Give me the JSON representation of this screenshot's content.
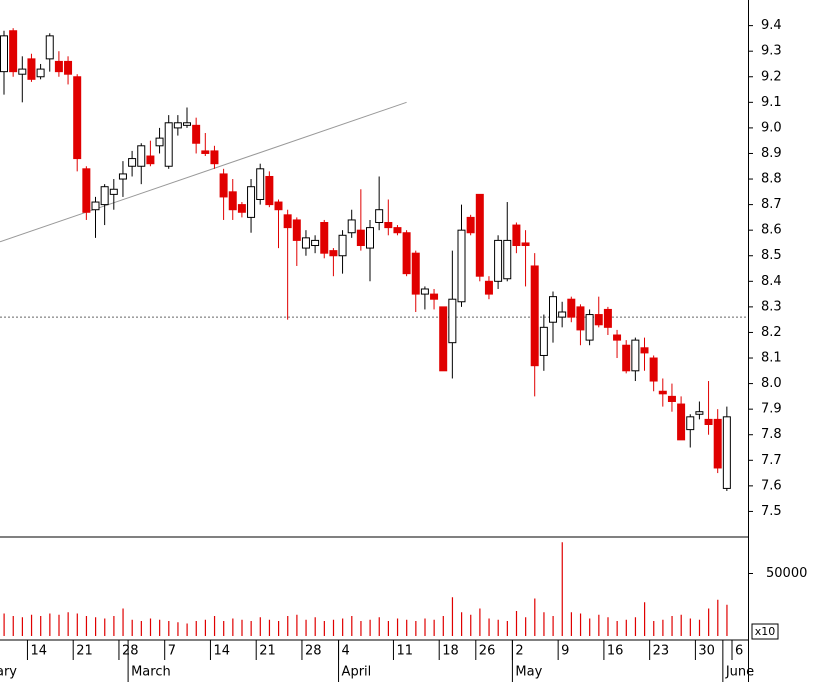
{
  "chart_data": {
    "type": "candlestick",
    "categories": [
      null,
      null,
      null,
      "14",
      null,
      null,
      null,
      null,
      "21",
      null,
      null,
      null,
      null,
      "28",
      null,
      null,
      null,
      null,
      "7",
      null,
      null,
      null,
      null,
      "14",
      null,
      null,
      null,
      null,
      "21",
      null,
      null,
      null,
      null,
      "28",
      null,
      null,
      null,
      "4",
      null,
      null,
      null,
      null,
      null,
      "11",
      null,
      null,
      null,
      null,
      "18",
      null,
      null,
      null,
      "26",
      null,
      null,
      null,
      "2",
      null,
      null,
      null,
      null,
      "9",
      null,
      null,
      null,
      null,
      "16",
      null,
      null,
      null,
      null,
      "23",
      null,
      null,
      null,
      null,
      "30",
      null,
      null,
      null,
      "6"
    ],
    "months": [
      "ary",
      null,
      null,
      null,
      null,
      null,
      null,
      null,
      null,
      null,
      null,
      null,
      null,
      null,
      "March",
      null,
      null,
      null,
      null,
      null,
      null,
      null,
      null,
      null,
      null,
      null,
      null,
      null,
      null,
      null,
      null,
      null,
      null,
      null,
      null,
      null,
      null,
      "April",
      null,
      null,
      null,
      null,
      null,
      null,
      null,
      null,
      null,
      null,
      null,
      null,
      null,
      null,
      null,
      null,
      null,
      null,
      "May",
      null,
      null,
      null,
      null,
      null,
      null,
      null,
      null,
      null,
      null,
      null,
      null,
      null,
      null,
      null,
      null,
      null,
      null,
      null,
      null,
      null,
      null,
      "June",
      null
    ],
    "open": [
      9.22,
      9.38,
      9.21,
      9.27,
      9.2,
      9.27,
      9.26,
      9.26,
      9.2,
      8.84,
      8.68,
      8.7,
      8.74,
      8.8,
      8.85,
      8.85,
      8.89,
      8.93,
      8.85,
      9.0,
      9.01,
      9.01,
      8.91,
      8.91,
      8.82,
      8.75,
      8.7,
      8.65,
      8.72,
      8.81,
      8.71,
      8.66,
      8.64,
      8.53,
      8.54,
      8.63,
      8.52,
      8.5,
      8.59,
      8.6,
      8.53,
      8.63,
      8.63,
      8.61,
      8.59,
      8.51,
      8.35,
      8.35,
      8.3,
      8.16,
      8.32,
      8.65,
      8.74,
      8.4,
      8.4,
      8.41,
      8.62,
      8.55,
      8.46,
      8.11,
      8.24,
      8.26,
      8.33,
      8.3,
      8.17,
      8.27,
      8.29,
      8.19,
      8.15,
      8.05,
      8.14,
      8.1,
      7.97,
      7.95,
      7.92,
      7.82,
      7.88,
      7.86,
      7.86,
      7.59,
      null
    ],
    "high": [
      9.38,
      9.39,
      9.28,
      9.29,
      9.25,
      9.37,
      9.3,
      9.28,
      9.21,
      8.85,
      8.73,
      8.78,
      8.8,
      8.87,
      8.91,
      8.94,
      8.95,
      9.0,
      9.05,
      9.05,
      9.08,
      9.04,
      8.98,
      8.93,
      8.84,
      8.8,
      8.71,
      8.8,
      8.86,
      8.83,
      8.72,
      8.68,
      8.65,
      8.6,
      8.58,
      8.64,
      8.53,
      8.6,
      8.68,
      8.76,
      8.64,
      8.81,
      8.72,
      8.62,
      8.6,
      8.52,
      8.38,
      8.37,
      8.3,
      8.52,
      8.7,
      8.66,
      8.74,
      8.42,
      8.58,
      8.71,
      8.63,
      8.6,
      8.51,
      8.27,
      8.36,
      8.32,
      8.34,
      8.31,
      8.29,
      8.34,
      8.3,
      8.21,
      8.17,
      8.18,
      8.18,
      8.11,
      8.02,
      8.0,
      7.95,
      7.88,
      7.93,
      8.01,
      7.9,
      7.91,
      null
    ],
    "low": [
      9.13,
      9.2,
      9.1,
      9.18,
      9.19,
      9.22,
      9.2,
      9.17,
      8.83,
      8.64,
      8.57,
      8.62,
      8.68,
      8.73,
      8.81,
      8.78,
      8.85,
      8.9,
      8.84,
      8.97,
      9.0,
      8.9,
      8.89,
      8.84,
      8.64,
      8.64,
      8.65,
      8.59,
      8.7,
      8.69,
      8.53,
      8.25,
      8.46,
      8.5,
      8.51,
      8.49,
      8.42,
      8.43,
      8.57,
      8.52,
      8.4,
      8.6,
      8.58,
      8.58,
      8.42,
      8.28,
      8.29,
      8.29,
      8.05,
      8.02,
      8.3,
      8.58,
      8.4,
      8.33,
      8.37,
      8.4,
      8.51,
      8.38,
      7.95,
      8.05,
      8.16,
      8.22,
      8.24,
      8.15,
      8.15,
      8.22,
      8.19,
      8.1,
      8.04,
      8.01,
      8.05,
      7.97,
      7.91,
      7.89,
      7.78,
      7.75,
      7.86,
      7.8,
      7.65,
      7.58,
      null
    ],
    "close": [
      9.36,
      9.22,
      9.23,
      9.19,
      9.23,
      9.36,
      9.22,
      9.21,
      8.88,
      8.67,
      8.71,
      8.77,
      8.76,
      8.82,
      8.88,
      8.93,
      8.86,
      8.96,
      9.02,
      9.02,
      9.02,
      8.94,
      8.9,
      8.86,
      8.73,
      8.68,
      8.67,
      8.77,
      8.84,
      8.7,
      8.68,
      8.61,
      8.56,
      8.57,
      8.56,
      8.51,
      8.5,
      8.58,
      8.64,
      8.54,
      8.61,
      8.68,
      8.61,
      8.59,
      8.43,
      8.35,
      8.37,
      8.33,
      8.05,
      8.33,
      8.6,
      8.59,
      8.42,
      8.35,
      8.56,
      8.56,
      8.54,
      8.54,
      8.07,
      8.22,
      8.34,
      8.28,
      8.26,
      8.21,
      8.27,
      8.23,
      8.22,
      8.17,
      8.05,
      8.17,
      8.12,
      8.01,
      7.96,
      7.93,
      7.78,
      7.87,
      7.89,
      7.84,
      7.67,
      7.87,
      null
    ],
    "volume": [
      18000,
      16000,
      15000,
      17000,
      16000,
      18000,
      17000,
      19000,
      18000,
      16000,
      15000,
      14000,
      16000,
      22000,
      13000,
      12000,
      14000,
      13000,
      12000,
      11000,
      10000,
      12000,
      13000,
      16000,
      12000,
      14000,
      13000,
      12000,
      15000,
      13000,
      12000,
      16000,
      17000,
      13000,
      15000,
      12000,
      13000,
      14000,
      16000,
      12000,
      13000,
      15000,
      12000,
      14000,
      13000,
      12000,
      14000,
      13000,
      16000,
      31000,
      19000,
      17000,
      22000,
      14000,
      13000,
      12000,
      20000,
      15000,
      30000,
      19000,
      16000,
      75000,
      19000,
      18000,
      14000,
      17000,
      15000,
      12000,
      13000,
      15000,
      27000,
      12000,
      13000,
      16000,
      17000,
      14000,
      13000,
      22000,
      29000,
      25000,
      null
    ],
    "ylim": [
      7.4,
      9.5
    ],
    "yticks": [
      7.5,
      7.6,
      7.7,
      7.8,
      7.9,
      {
        "value": 8,
        "label": "8.0"
      },
      8.1,
      8.2,
      8.3,
      8.4,
      8.5,
      8.6,
      8.7,
      8.8,
      8.9,
      {
        "value": 9,
        "label": "9.0"
      },
      9.1,
      9.2,
      9.3,
      9.4
    ],
    "volume_ylim": [
      0,
      80000
    ],
    "volume_yticks": [
      50000
    ],
    "volume_multiplier": "x10",
    "reference_line": 8.26,
    "trendline": {
      "from": [
        0,
        8.56
      ],
      "to": [
        44,
        9.1
      ]
    },
    "up_color": "#ffffff",
    "down_color": "#e00000"
  }
}
